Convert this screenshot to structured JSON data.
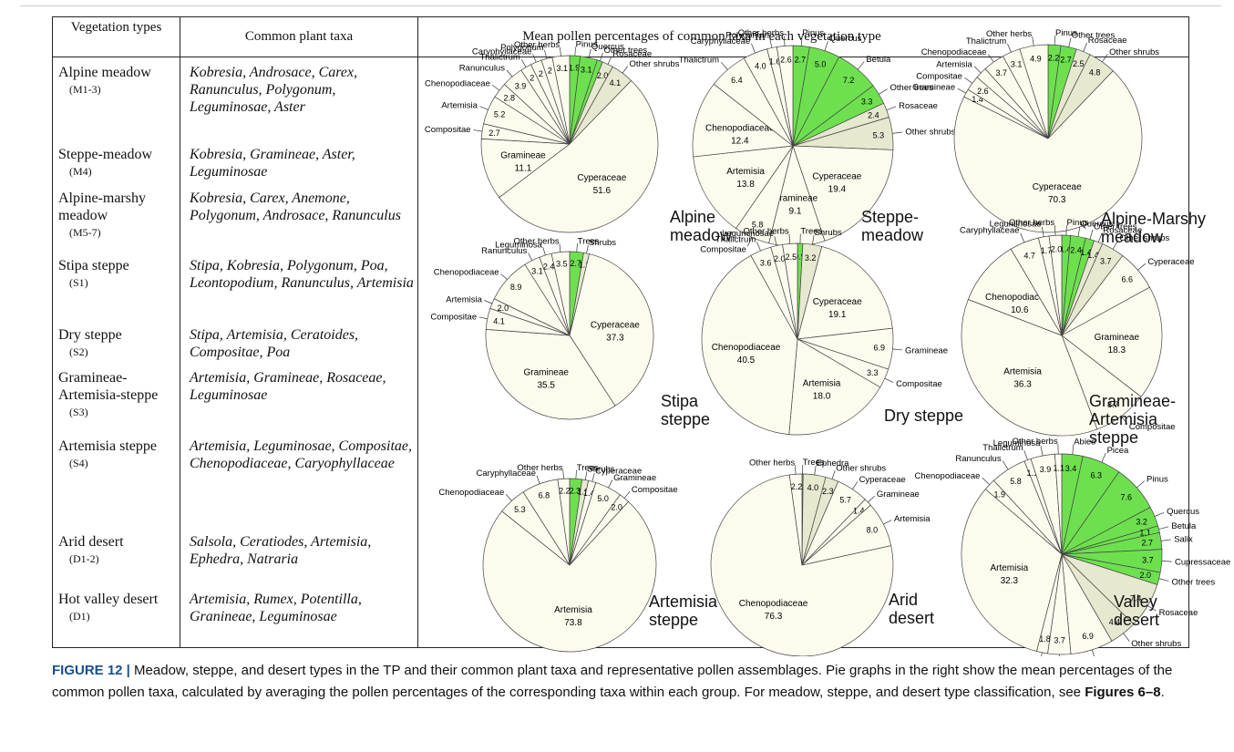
{
  "table": {
    "headers": [
      "Vegetation types",
      "Common plant taxa",
      "Mean pollen percentages of common taxa in each vegetation type"
    ],
    "rows": [
      {
        "type": "Alpine meadow",
        "code": "(M1-3)",
        "taxa": "Kobresia, Androsace, Carex, Ranunculus, Polygonum, Leguminosae, Aster"
      },
      {
        "type": "Steppe-meadow",
        "code": "(M4)",
        "taxa": "Kobresia, Gramineae, Aster, Leguminosae"
      },
      {
        "type": "Alpine-marshy meadow",
        "code": "(M5-7)",
        "taxa": "Kobresia, Carex, Anemone, Polygonum, Androsace, Ranunculus"
      },
      {
        "type": "Stipa steppe",
        "code": "(S1)",
        "taxa": "Stipa, Kobresia, Polygonum, Poa, Leontopodium, Ranunculus, Artemisia"
      },
      {
        "type": "Dry steppe",
        "code": "(S2)",
        "taxa": "Stipa, Artemisia, Ceratoides, Compositae, Poa"
      },
      {
        "type": "Gramineae-Artemisia-steppe",
        "code": "(S3)",
        "taxa": "Artemisia, Gramineae, Rosaceae, Leguminosae"
      },
      {
        "type": "Artemisia steppe",
        "code": "(S4)",
        "taxa": "Artemisia, Leguminosae, Compositae, Chenopodiaceae, Caryophyllaceae"
      },
      {
        "type": "Arid desert",
        "code": "(D1-2)",
        "taxa": "Salsola, Ceratiodes, Artemisia, Ephedra, Natraria"
      },
      {
        "type": "Hot valley desert",
        "code": "(D1)",
        "taxa": "Artemisia, Rumex, Potentilla, Granineae, Leguminosae"
      }
    ]
  },
  "pies": [
    {
      "title": "Alpine meadow",
      "slices": [
        {
          "name": "Pinus",
          "value": 1.9,
          "value_label": "1.9",
          "color": "#6ee04f"
        },
        {
          "name": "Quercus",
          "value": 3.1,
          "value_label": "3.1",
          "color": "#6ee04f"
        },
        {
          "name": "Other trees",
          "value": 1.0,
          "color": "#6ee04f"
        },
        {
          "name": "Rosaceae",
          "value": 2.0,
          "value_label": "2.0",
          "color": "#e6e8cf"
        },
        {
          "name": "Other shrubs",
          "value": 4.1,
          "value_label": "4.1",
          "color": "#e6e8cf"
        },
        {
          "name": "Cyperaceae",
          "value": 51.6,
          "value_label": "51.6",
          "color": "#fdfbee"
        },
        {
          "name": "Gramineae",
          "value": 11.1,
          "value_label": "11.1",
          "color": "#fdfbee"
        },
        {
          "name": "Compositae",
          "value": 2.7,
          "value_label": "2.7",
          "color": "#fdfbee"
        },
        {
          "name": "Artemisia",
          "value": 5.2,
          "value_label": "5.2",
          "color": "#fdfbee"
        },
        {
          "name": "Chenopodiaceae",
          "value": 2.8,
          "value_label": "2.8",
          "color": "#fdfbee"
        },
        {
          "name": "Ranunculus",
          "value": 3.9,
          "value_label": "3.9",
          "color": "#fdfbee"
        },
        {
          "name": "Thalictrum",
          "value": 2,
          "value_label": "2",
          "color": "#fdfbee"
        },
        {
          "name": "Caryphyllaceae",
          "value": 2,
          "value_label": "2",
          "color": "#fdfbee"
        },
        {
          "name": "Polygonum",
          "value": 2,
          "value_label": "2",
          "color": "#fdfbee"
        },
        {
          "name": "Other herbs",
          "value": 3.1,
          "value_label": "3.1",
          "color": "#fdfbee"
        }
      ]
    },
    {
      "title": "Steppe-meadow",
      "slices": [
        {
          "name": "Pinus",
          "value": 2.7,
          "value_label": "2.7",
          "color": "#6ee04f"
        },
        {
          "name": "Quercus",
          "value": 5.0,
          "value_label": "5.0",
          "color": "#6ee04f"
        },
        {
          "name": "Betula",
          "value": 7.2,
          "value_label": "7.2",
          "color": "#6ee04f"
        },
        {
          "name": "Other trees",
          "value": 3.3,
          "value_label": "3.3",
          "color": "#6ee04f"
        },
        {
          "name": "Rosaceae",
          "value": 2.4,
          "value_label": "2.4",
          "color": "#e6e8cf"
        },
        {
          "name": "Other shrubs",
          "value": 5.3,
          "value_label": "5.3",
          "color": "#e6e8cf"
        },
        {
          "name": "Cyperaceae",
          "value": 19.4,
          "value_label": "19.4",
          "color": "#fdfbee"
        },
        {
          "name": "Gramineae",
          "value": 9.1,
          "value_label": "9.1",
          "color": "#fdfbee"
        },
        {
          "name": "Compositae",
          "value": 5.8,
          "value_label": "5.8",
          "color": "#fdfbee"
        },
        {
          "name": "Artemisia",
          "value": 13.8,
          "value_label": "13.8",
          "color": "#fdfbee"
        },
        {
          "name": "Chenopodiaceae",
          "value": 12.4,
          "value_label": "12.4",
          "color": "#fdfbee"
        },
        {
          "name": "Thalictrum",
          "value": 6.4,
          "value_label": "6.4",
          "color": "#fdfbee"
        },
        {
          "name": "Caryphyllaceae",
          "value": 4.0,
          "value_label": "4.0",
          "color": "#fdfbee"
        },
        {
          "name": "Polygonum",
          "value": 1.6,
          "value_label": "1.6",
          "color": "#fdfbee"
        },
        {
          "name": "Other herbs",
          "value": 2.6,
          "value_label": "2.6",
          "color": "#fdfbee"
        }
      ]
    },
    {
      "title": "Alpine-Marshy meadow",
      "slices": [
        {
          "name": "Pinus",
          "value": 2.2,
          "value_label": "2.2",
          "color": "#6ee04f"
        },
        {
          "name": "Other trees",
          "value": 2.7,
          "value_label": "2.7",
          "color": "#6ee04f"
        },
        {
          "name": "Rosaceae",
          "value": 2.5,
          "value_label": "2.5",
          "color": "#e6e8cf"
        },
        {
          "name": "Other shrubs",
          "value": 4.8,
          "value_label": "4.8",
          "color": "#e6e8cf"
        },
        {
          "name": "Cyperaceae",
          "value": 70.3,
          "value_label": "70.3",
          "color": "#fdfbee"
        },
        {
          "name": "Gramineae",
          "value": 1.4,
          "value_label": "1.4",
          "color": "#fdfbee"
        },
        {
          "name": "Compositae",
          "value": 2.6,
          "value_label": "2.6",
          "color": "#fdfbee"
        },
        {
          "name": "Artemisia",
          "value": 2,
          "color": "#fdfbee"
        },
        {
          "name": "Chenopodiaceae",
          "value": 3.7,
          "value_label": "3.7",
          "color": "#fdfbee"
        },
        {
          "name": "Thalictrum",
          "value": 3.1,
          "value_label": "3.1",
          "color": "#fdfbee"
        },
        {
          "name": "Other herbs",
          "value": 4.9,
          "value_label": "4.9",
          "color": "#fdfbee"
        }
      ]
    },
    {
      "title": "Stipa steppe",
      "slices": [
        {
          "name": "Trees",
          "value": 2.7,
          "value_label": "2.7",
          "color": "#6ee04f"
        },
        {
          "name": "Shrubs",
          "value": 1.1,
          "value_label": "1.1",
          "color": "#e6e8cf"
        },
        {
          "name": "Cyperaceae",
          "value": 37.3,
          "value_label": "37.3",
          "color": "#fdfbee"
        },
        {
          "name": "Gramineae",
          "value": 35.5,
          "value_label": "35.5",
          "color": "#fdfbee"
        },
        {
          "name": "Compositae",
          "value": 4.1,
          "value_label": "4.1",
          "color": "#fdfbee"
        },
        {
          "name": "Artemisia",
          "value": 2.0,
          "value_label": "2.0",
          "color": "#fdfbee"
        },
        {
          "name": "Chenopodiaceae",
          "value": 8.9,
          "value_label": "8.9",
          "color": "#fdfbee"
        },
        {
          "name": "Ranunculus",
          "value": 3.1,
          "value_label": "3.1",
          "color": "#fdfbee"
        },
        {
          "name": "Leguminosa",
          "value": 2.4,
          "value_label": "2.4",
          "color": "#fdfbee"
        },
        {
          "name": "Other herbs",
          "value": 3.5,
          "value_label": "3.5",
          "color": "#fdfbee"
        }
      ]
    },
    {
      "title": "Dry steppe",
      "slices": [
        {
          "name": "Trees",
          "value": 0.9,
          "value_label": "0.9",
          "color": "#6ee04f"
        },
        {
          "name": "Shrubs",
          "value": 3.2,
          "value_label": "3.2",
          "color": "#e6e8cf"
        },
        {
          "name": "Cyperaceae",
          "value": 19.1,
          "value_label": "19.1",
          "color": "#fdfbee"
        },
        {
          "name": "Gramineae",
          "value": 6.9,
          "value_label": "6.9",
          "color": "#fdfbee"
        },
        {
          "name": "Compositae",
          "value": 3.3,
          "value_label": "3.3",
          "color": "#fdfbee"
        },
        {
          "name": "Artemisia",
          "value": 18.0,
          "value_label": "18.0",
          "color": "#fdfbee"
        },
        {
          "name": "Chenopodiaceae",
          "value": 40.5,
          "value_label": "40.5",
          "color": "#fdfbee"
        },
        {
          "name": "Thalictrum",
          "value": 3.6,
          "value_label": "3.6",
          "color": "#fdfbee"
        },
        {
          "name": "Leguminosae",
          "value": 2.0,
          "value_label": "2.0",
          "color": "#fdfbee"
        },
        {
          "name": "Other herbs",
          "value": 2.5,
          "value_label": "2.5",
          "color": "#fdfbee"
        }
      ]
    },
    {
      "title": "Gramineae-Artemisia steppe",
      "slices": [
        {
          "name": "Pinus",
          "value": 1.4,
          "value_label": "1.4",
          "color": "#6ee04f"
        },
        {
          "name": "Quercus",
          "value": 2.4,
          "value_label": "2.4",
          "color": "#6ee04f"
        },
        {
          "name": "Other trees",
          "value": 1.4,
          "value_label": "1.4",
          "color": "#6ee04f"
        },
        {
          "name": "Rosaceae",
          "value": 1.4,
          "value_label": "1.4",
          "color": "#e6e8cf"
        },
        {
          "name": "Other shrubs",
          "value": 3.7,
          "value_label": "3.7",
          "color": "#e6e8cf"
        },
        {
          "name": "Cyperaceae",
          "value": 6.6,
          "value_label": "6.6",
          "color": "#fdfbee"
        },
        {
          "name": "Gramineae",
          "value": 18.3,
          "value_label": "18.3",
          "color": "#fdfbee"
        },
        {
          "name": "Compositae",
          "value": 8.7,
          "value_label": "8.7",
          "color": "#fdfbee"
        },
        {
          "name": "Artemisia",
          "value": 36.3,
          "value_label": "36.3",
          "color": "#fdfbee"
        },
        {
          "name": "Chenopodiaceae",
          "value": 10.6,
          "value_label": "10.6",
          "color": "#fdfbee"
        },
        {
          "name": "Caryphyllaceae",
          "value": 4.7,
          "value_label": "4.7",
          "color": "#fdfbee"
        },
        {
          "name": "Leguminosae",
          "value": 1.7,
          "value_label": "1.7",
          "color": "#fdfbee"
        },
        {
          "name": "Other herbs",
          "value": 2.0,
          "value_label": "2.0",
          "color": "#fdfbee"
        }
      ]
    },
    {
      "title": "Artemisia steppe",
      "slices": [
        {
          "name": "Trees",
          "value": 2.3,
          "value_label": "2.3",
          "color": "#6ee04f"
        },
        {
          "name": "Shrubs",
          "value": 1.2,
          "value_label": "1.2",
          "color": "#e6e8cf"
        },
        {
          "name": "Cyperaceae",
          "value": 1.4,
          "value_label": "1.4",
          "color": "#fdfbee"
        },
        {
          "name": "Gramineae",
          "value": 5.0,
          "value_label": "5.0",
          "color": "#fdfbee"
        },
        {
          "name": "Compositae",
          "value": 2.0,
          "value_label": "2.0",
          "color": "#fdfbee"
        },
        {
          "name": "Artemisia",
          "value": 73.8,
          "value_label": "73.8",
          "color": "#fdfbee"
        },
        {
          "name": "Chenopodiaceae",
          "value": 5.3,
          "value_label": "5.3",
          "color": "#fdfbee"
        },
        {
          "name": "Caryphyllaceae",
          "value": 6.8,
          "value_label": "6.8",
          "color": "#fdfbee"
        },
        {
          "name": "Other herbs",
          "value": 2.2,
          "value_label": "2.2",
          "color": "#fdfbee"
        }
      ]
    },
    {
      "title": "Arid desert",
      "slices": [
        {
          "name": "Trees",
          "value": 0.2,
          "value_label": "0.2",
          "color": "#6ee04f"
        },
        {
          "name": "Ephedra",
          "value": 4.0,
          "value_label": "4.0",
          "color": "#e6e8cf"
        },
        {
          "name": "Other shrubs",
          "value": 2.3,
          "value_label": "2.3",
          "color": "#e6e8cf"
        },
        {
          "name": "Cyperaceae",
          "value": 5.7,
          "value_label": "5.7",
          "color": "#fdfbee"
        },
        {
          "name": "Gramineae",
          "value": 1.4,
          "value_label": "1.4",
          "color": "#fdfbee"
        },
        {
          "name": "Artemisia",
          "value": 8.0,
          "value_label": "8.0",
          "color": "#fdfbee"
        },
        {
          "name": "Chenopodiaceae",
          "value": 76.3,
          "value_label": "76.3",
          "color": "#fdfbee"
        },
        {
          "name": "Other herbs",
          "value": 2.2,
          "value_label": "2.2",
          "color": "#fdfbee"
        }
      ]
    },
    {
      "title": "Valley desert",
      "slices": [
        {
          "name": "Abies",
          "value": 3.4,
          "value_label": "3.4",
          "color": "#6ee04f"
        },
        {
          "name": "Picea",
          "value": 6.3,
          "value_label": "6.3",
          "color": "#6ee04f"
        },
        {
          "name": "Pinus",
          "value": 7.6,
          "value_label": "7.6",
          "color": "#6ee04f"
        },
        {
          "name": "Quercus",
          "value": 3.2,
          "value_label": "3.2",
          "color": "#6ee04f"
        },
        {
          "name": "Betula",
          "value": 1.1,
          "value_label": "1.1",
          "color": "#6ee04f"
        },
        {
          "name": "Salix",
          "value": 2.7,
          "value_label": "2.7",
          "color": "#6ee04f"
        },
        {
          "name": "Cupressaceae",
          "value": 3.7,
          "value_label": "3.7",
          "color": "#6ee04f"
        },
        {
          "name": "Other trees",
          "value": 2.0,
          "value_label": "2.0",
          "color": "#6ee04f"
        },
        {
          "name": "Rosaceae",
          "value": 7.4,
          "value_label": "7.4",
          "color": "#e6e8cf"
        },
        {
          "name": "Other shrubs",
          "value": 4.4,
          "value_label": "4.4",
          "color": "#e6e8cf"
        },
        {
          "name": "Cyperaceae",
          "value": 6.9,
          "value_label": "6.9",
          "color": "#fdfbee"
        },
        {
          "name": "Gramineae",
          "value": 3.7,
          "value_label": "3.7",
          "color": "#fdfbee"
        },
        {
          "name": "Compositae",
          "value": 1.8,
          "value_label": "1.8",
          "color": "#fdfbee"
        },
        {
          "name": "Artemisia",
          "value": 32.3,
          "value_label": "32.3",
          "color": "#fdfbee"
        },
        {
          "name": "Chenopodiaceae",
          "value": 1.9,
          "value_label": "1.9",
          "color": "#fdfbee"
        },
        {
          "name": "Ranunculus",
          "value": 5.8,
          "value_label": "5.8",
          "color": "#fdfbee"
        },
        {
          "name": "Thalictrum",
          "value": 1.1,
          "value_label": "1.1",
          "color": "#fdfbee"
        },
        {
          "name": "Leguminosa",
          "value": 3.9,
          "value_label": "3.9",
          "color": "#fdfbee"
        },
        {
          "name": "Other herbs",
          "value": 1.1,
          "value_label": "1.1",
          "color": "#fdfbee"
        }
      ]
    }
  ],
  "caption": {
    "label": "FIGURE 12 |",
    "text": " Meadow, steppe, and desert types in the TP and their common plant taxa and representative pollen assemblages. Pie graphs in the right show the mean percentages of the common pollen taxa, calculated by averaging the pollen percentages of the corresponding taxa within each group. For meadow, steppe, and desert type classification, see ",
    "ref": "Figures 6–8",
    "end": "."
  }
}
